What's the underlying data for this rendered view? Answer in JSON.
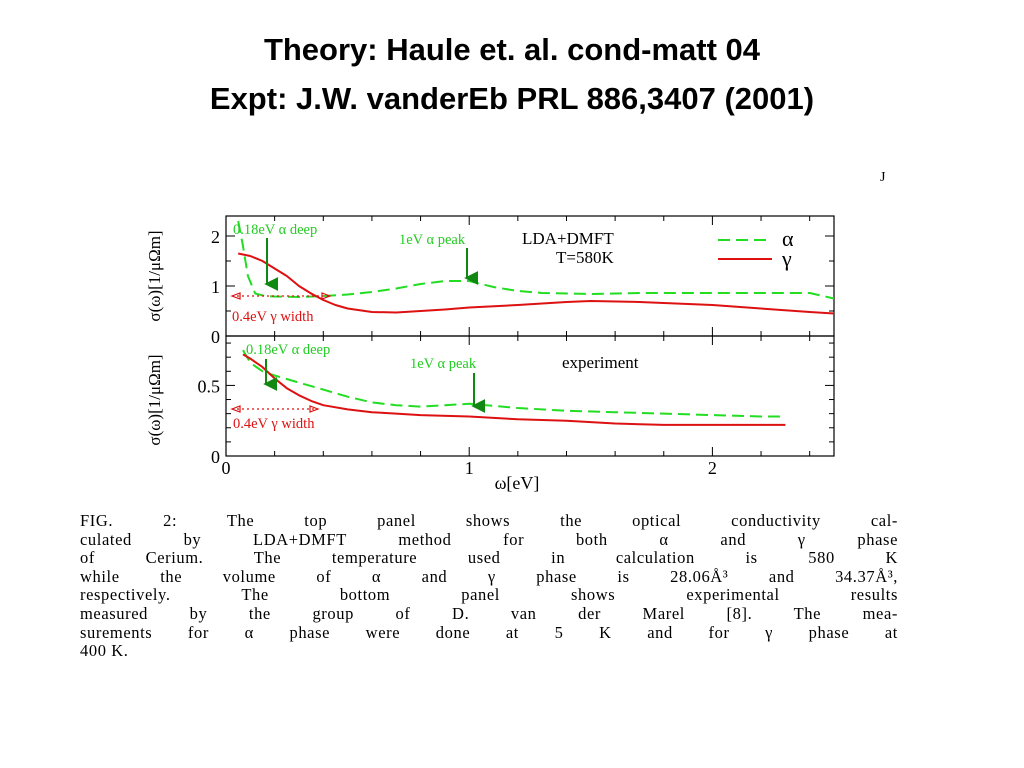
{
  "slide": {
    "title_line1": "Theory: Haule et. al. cond-matt 04",
    "title_line2": "Expt: J.W. vanderEb PRL 886,3407 (2001)",
    "stray_mark": "J"
  },
  "colors": {
    "alpha": "#22dd22",
    "gamma": "#dd1111",
    "arrow": "#118811",
    "axis": "#000000"
  },
  "chart_data": [
    {
      "panel": "top",
      "type": "line",
      "ylabel": "σ(ω)[1/μΩm]",
      "xlim": [
        0,
        2.5
      ],
      "ylim": [
        0,
        2.4
      ],
      "yticks": [
        0,
        1,
        2
      ],
      "legend": {
        "heading": "LDA+DMFT",
        "subheading": "T=580K",
        "placement": "top-right"
      },
      "series": [
        {
          "name": "α",
          "style": "dashed",
          "color": "#22dd22",
          "x": [
            0.05,
            0.07,
            0.09,
            0.12,
            0.16,
            0.2,
            0.3,
            0.4,
            0.5,
            0.6,
            0.7,
            0.8,
            0.9,
            1.0,
            1.1,
            1.2,
            1.3,
            1.5,
            1.7,
            2.0,
            2.2,
            2.4,
            2.5
          ],
          "y": [
            2.3,
            1.8,
            1.2,
            0.85,
            0.8,
            0.79,
            0.78,
            0.8,
            0.83,
            0.88,
            0.95,
            1.04,
            1.1,
            1.1,
            0.98,
            0.9,
            0.86,
            0.84,
            0.86,
            0.86,
            0.86,
            0.86,
            0.75
          ]
        },
        {
          "name": "γ",
          "style": "solid",
          "color": "#dd1111",
          "x": [
            0.05,
            0.1,
            0.15,
            0.2,
            0.25,
            0.3,
            0.35,
            0.4,
            0.45,
            0.5,
            0.6,
            0.7,
            0.8,
            0.9,
            1.0,
            1.2,
            1.4,
            1.5,
            1.7,
            2.0,
            2.2,
            2.4,
            2.5
          ],
          "y": [
            1.65,
            1.6,
            1.5,
            1.35,
            1.2,
            1.0,
            0.85,
            0.72,
            0.62,
            0.55,
            0.48,
            0.47,
            0.5,
            0.53,
            0.57,
            0.62,
            0.68,
            0.7,
            0.68,
            0.62,
            0.55,
            0.48,
            0.45
          ]
        }
      ],
      "annotations": [
        {
          "text": "0.18eV α deep",
          "arrow_x": 0.17
        },
        {
          "text": "1eV α peak",
          "arrow_x": 1.0
        },
        {
          "text": "0.4eV γ width"
        }
      ]
    },
    {
      "panel": "bottom",
      "type": "line",
      "ylabel": "σ(ω)[1/μΩm]",
      "xlabel": "ω[eV]",
      "xlim": [
        0,
        2.5
      ],
      "ylim": [
        0,
        0.85
      ],
      "xticks": [
        0,
        1,
        2
      ],
      "yticks": [
        0,
        0.5
      ],
      "legend": {
        "heading": "experiment",
        "placement": "top-right"
      },
      "series": [
        {
          "name": "α",
          "style": "dashed",
          "color": "#22dd22",
          "x": [
            0.07,
            0.1,
            0.15,
            0.2,
            0.3,
            0.4,
            0.5,
            0.6,
            0.7,
            0.8,
            0.9,
            1.0,
            1.2,
            1.4,
            1.6,
            1.8,
            2.0,
            2.2,
            2.3
          ],
          "y": [
            0.75,
            0.66,
            0.6,
            0.57,
            0.52,
            0.47,
            0.42,
            0.38,
            0.36,
            0.35,
            0.36,
            0.37,
            0.34,
            0.32,
            0.31,
            0.3,
            0.29,
            0.28,
            0.28
          ]
        },
        {
          "name": "γ",
          "style": "solid",
          "color": "#dd1111",
          "x": [
            0.07,
            0.1,
            0.15,
            0.2,
            0.25,
            0.3,
            0.35,
            0.4,
            0.5,
            0.6,
            0.7,
            0.8,
            1.0,
            1.2,
            1.4,
            1.6,
            1.8,
            2.0,
            2.2,
            2.3
          ],
          "y": [
            0.72,
            0.69,
            0.63,
            0.55,
            0.48,
            0.43,
            0.39,
            0.36,
            0.33,
            0.31,
            0.3,
            0.29,
            0.28,
            0.26,
            0.25,
            0.23,
            0.22,
            0.22,
            0.22,
            0.22
          ]
        }
      ],
      "annotations": [
        {
          "text": "0.18eV α deep",
          "arrow_x": 0.17
        },
        {
          "text": "1eV α peak",
          "arrow_x": 1.0
        },
        {
          "text": "0.4eV γ width"
        }
      ]
    }
  ],
  "caption": {
    "lines": [
      "FIG. 2: The top panel shows the optical conductivity cal-",
      "culated by LDA+DMFT method for both α and γ phase",
      "of Cerium. The temperature used in calculation is 580 K",
      "while the volume of α and γ phase is 28.06Å³ and 34.37Å³,",
      "respectively. The bottom panel shows experimental results",
      "measured by the group of D. van der Marel [8]. The mea-",
      "surements for α phase were done at 5 K and for γ phase at",
      "400 K."
    ]
  }
}
